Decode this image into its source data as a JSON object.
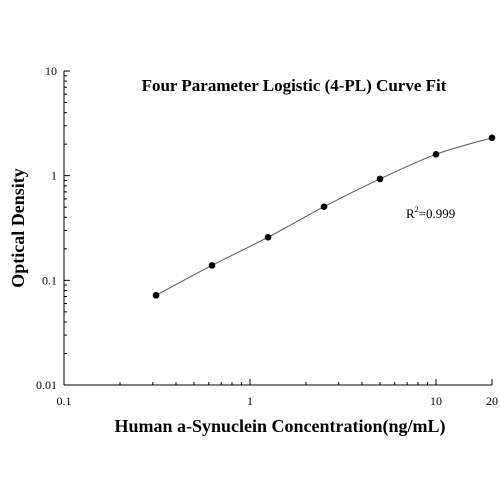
{
  "chart_data": {
    "type": "scatter",
    "title": "Four Parameter Logistic (4-PL) Curve Fit",
    "xlabel": "Human a-Synuclein Concentration(ng/mL)",
    "ylabel": "Optical Density",
    "x_scale": "log",
    "y_scale": "log",
    "xlim": [
      0.1,
      20
    ],
    "ylim": [
      0.01,
      10
    ],
    "x_ticks": [
      {
        "value": 0.1,
        "label": "0.1"
      },
      {
        "value": 1,
        "label": "1"
      },
      {
        "value": 10,
        "label": "10"
      },
      {
        "value": 20,
        "label": "20"
      }
    ],
    "y_ticks": [
      {
        "value": 0.01,
        "label": "0.01"
      },
      {
        "value": 0.1,
        "label": "0.1"
      },
      {
        "value": 1,
        "label": "1"
      },
      {
        "value": 10,
        "label": "10"
      }
    ],
    "grid": false,
    "annotation": {
      "base": "R",
      "sup": "2",
      "rest": "=0.999"
    },
    "points": [
      {
        "x": 0.3125,
        "y": 0.072
      },
      {
        "x": 0.625,
        "y": 0.139
      },
      {
        "x": 1.25,
        "y": 0.258
      },
      {
        "x": 2.5,
        "y": 0.505
      },
      {
        "x": 5,
        "y": 0.93
      },
      {
        "x": 10,
        "y": 1.6
      },
      {
        "x": 20,
        "y": 2.3
      }
    ],
    "fit_curve": {
      "type": "4PL",
      "range": [
        0.3125,
        20
      ],
      "color": "#555555"
    },
    "marker_color": "#000000"
  }
}
